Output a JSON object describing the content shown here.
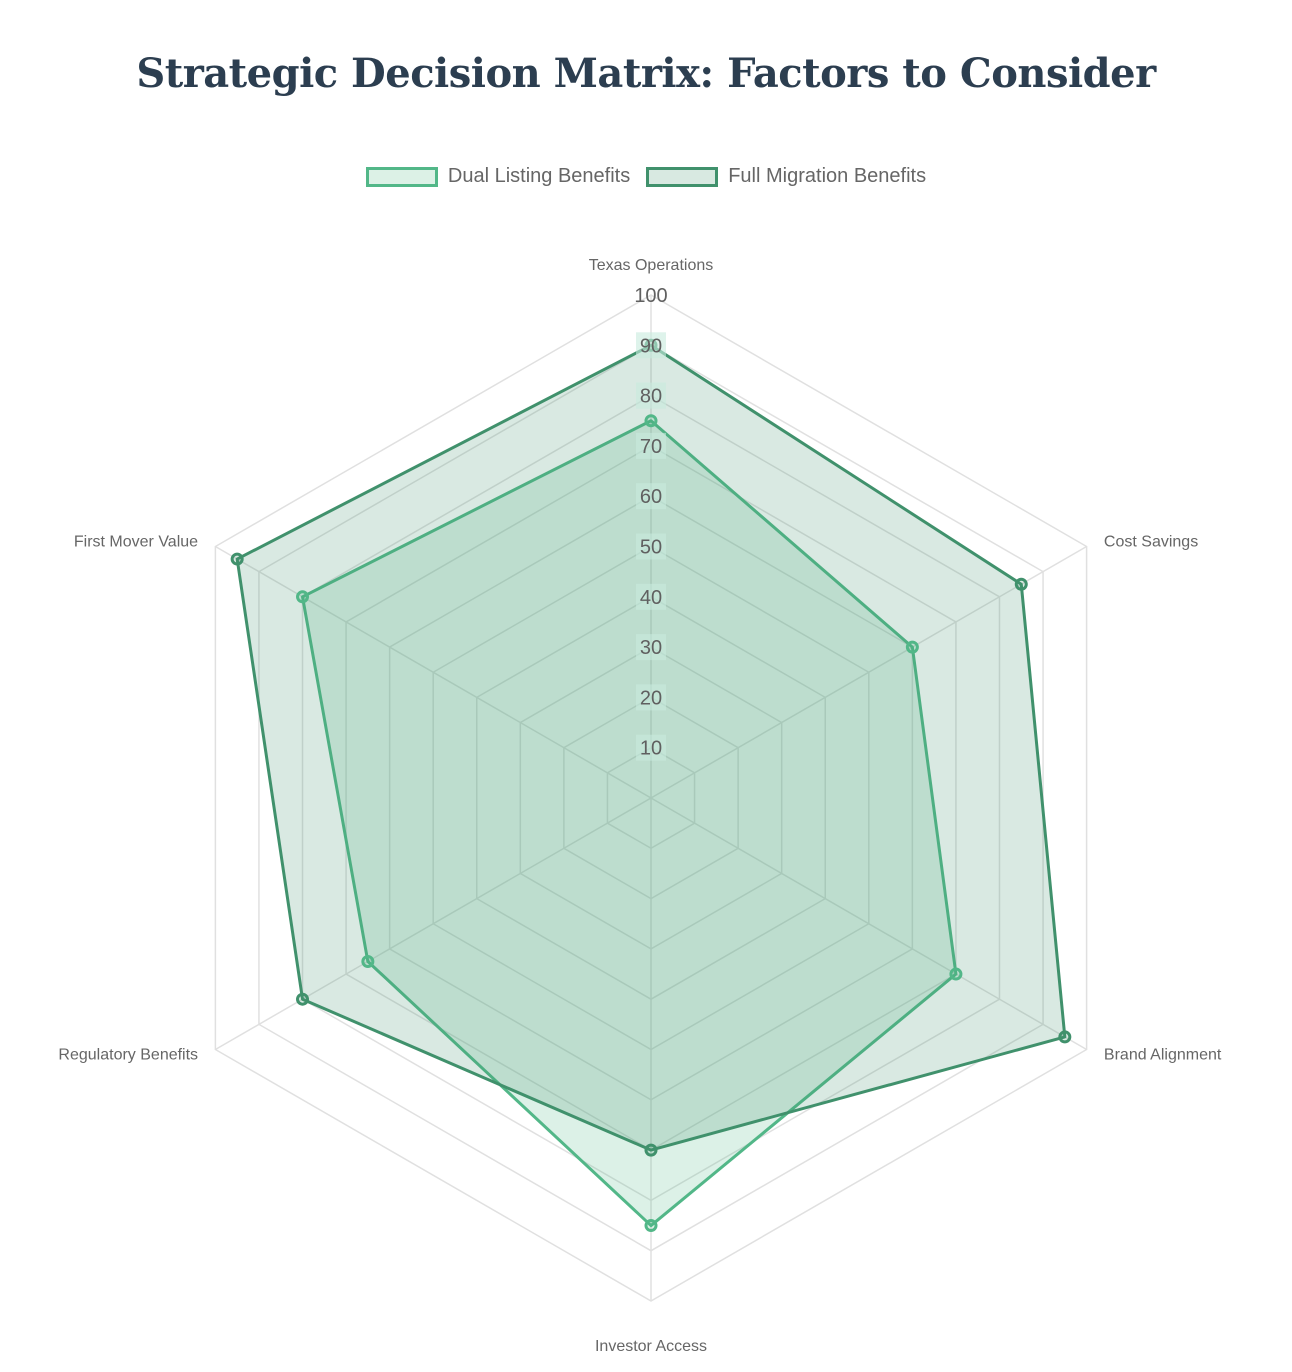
{
  "chart_data": {
    "type": "radar",
    "title": "Strategic Decision Matrix: Factors to Consider",
    "categories": [
      "Texas Operations",
      "Cost Savings",
      "Brand Alignment",
      "Investor Access",
      "Regulatory Benefits",
      "First Mover Value"
    ],
    "series": [
      {
        "name": "Dual Listing Benefits",
        "values": [
          75,
          60,
          70,
          85,
          65,
          80
        ],
        "border_color": "#52b788",
        "fill_color": "rgba(82,183,136,0.2)"
      },
      {
        "name": "Full Migration Benefits",
        "values": [
          90,
          85,
          95,
          70,
          80,
          95
        ],
        "border_color": "#40916c",
        "fill_color": "rgba(64,145,108,0.2)"
      }
    ],
    "r_ticks": [
      10,
      20,
      30,
      40,
      50,
      60,
      70,
      80,
      90,
      100
    ],
    "r_range": [
      0,
      100
    ],
    "grid": true,
    "legend_position": "top"
  }
}
